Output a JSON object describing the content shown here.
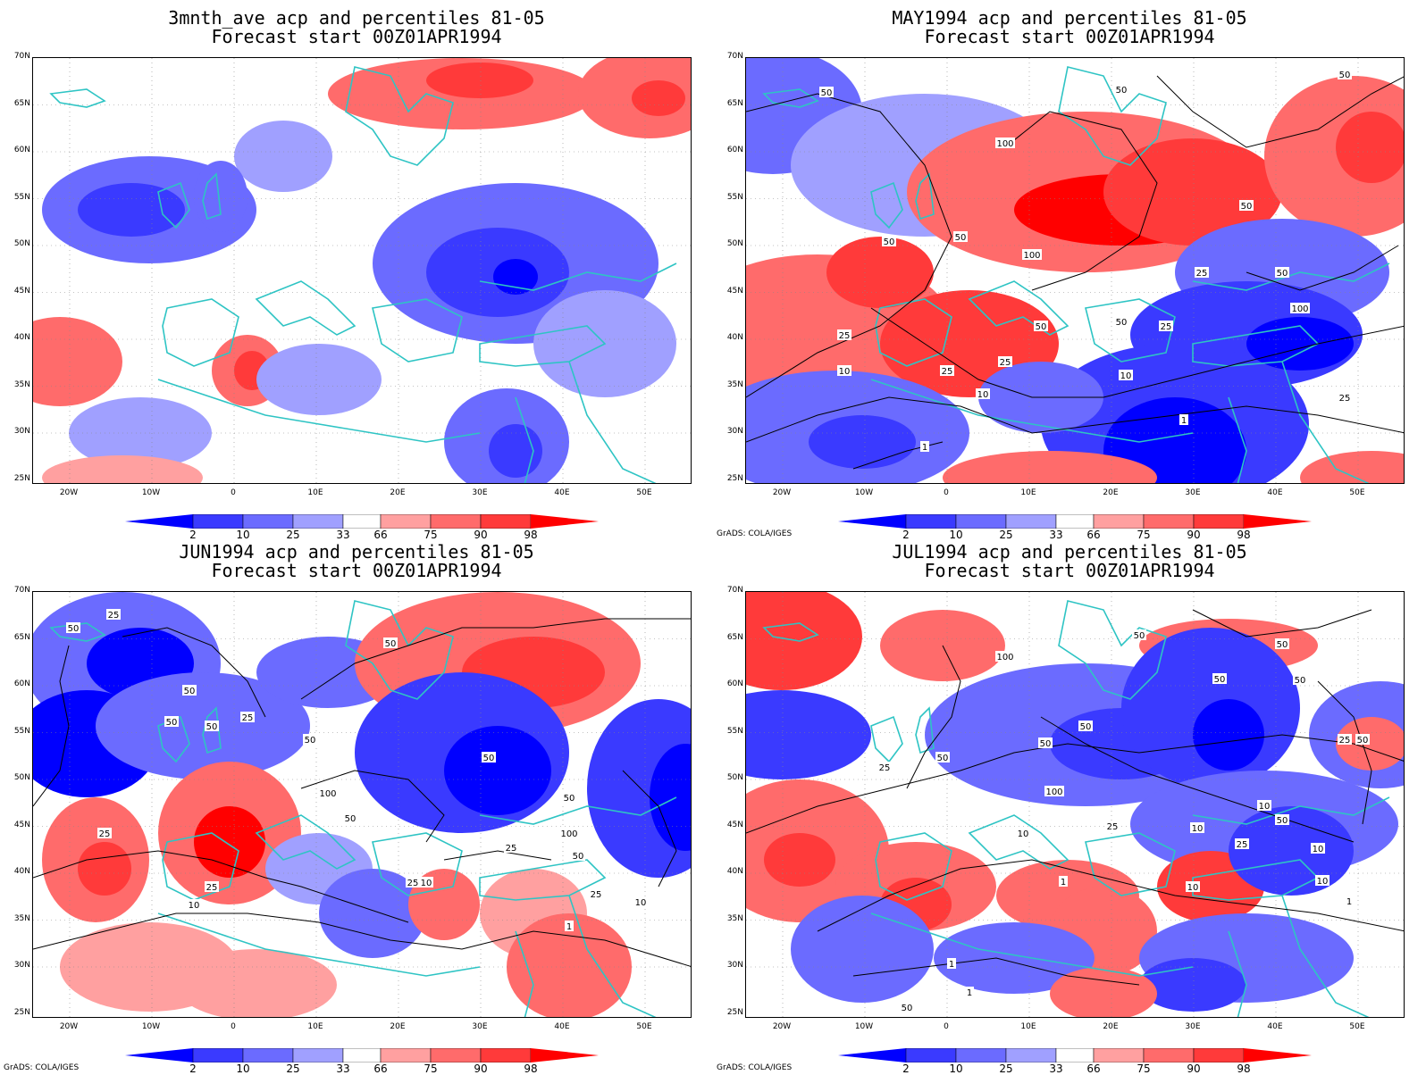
{
  "colors": {
    "cb": [
      "#0000ff",
      "#3a3aff",
      "#6b6bff",
      "#a0a0ff",
      "#ffffff",
      "#ffa0a0",
      "#ff6b6b",
      "#ff3a3a",
      "#ff0000"
    ],
    "coast": "#2ec4c4",
    "contour": "#000000"
  },
  "axes": {
    "lat_labels": [
      "70N",
      "65N",
      "60N",
      "55N",
      "50N",
      "45N",
      "40N",
      "35N",
      "30N",
      "25N"
    ],
    "lon_labels": [
      "20W",
      "10W",
      "0",
      "10E",
      "20E",
      "30E",
      "40E",
      "50E"
    ]
  },
  "colorbar": {
    "labels": [
      "2",
      "10",
      "25",
      "33",
      "66",
      "75",
      "90",
      "98"
    ]
  },
  "credit": "GrADS: COLA/IGES",
  "panels": [
    {
      "title": "3mnth_ave acp and percentiles 81-05",
      "subtitle": "Forecast start 00Z01APR1994",
      "contour_labels": []
    },
    {
      "title": "MAY1994 acp and percentiles 81-05",
      "subtitle": "Forecast start 00Z01APR1994",
      "contour_labels": [
        "50",
        "50",
        "100",
        "50",
        "50",
        "100",
        "25",
        "50",
        "100",
        "50",
        "25",
        "25",
        "50",
        "25",
        "10",
        "25",
        "10",
        "10",
        "25",
        "1",
        "50",
        "50",
        "1"
      ]
    },
    {
      "title": "JUN1994 acp and percentiles 81-05",
      "subtitle": "Forecast start 00Z01APR1994",
      "contour_labels": [
        "25",
        "50",
        "50",
        "50",
        "50",
        "25",
        "50",
        "50",
        "50",
        "100",
        "50",
        "50",
        "25",
        "25",
        "25",
        "10",
        "10",
        "1",
        "50",
        "100",
        "25",
        "25",
        "10"
      ]
    },
    {
      "title": "JUL1994 acp and percentiles 81-05",
      "subtitle": "Forecast start 00Z01APR1994",
      "contour_labels": [
        "50",
        "100",
        "50",
        "50",
        "50",
        "50",
        "50",
        "25",
        "100",
        "50",
        "25",
        "50",
        "10",
        "10",
        "25",
        "10",
        "10",
        "1",
        "1",
        "1",
        "1",
        "50",
        "50",
        "25",
        "10",
        "10"
      ]
    }
  ]
}
